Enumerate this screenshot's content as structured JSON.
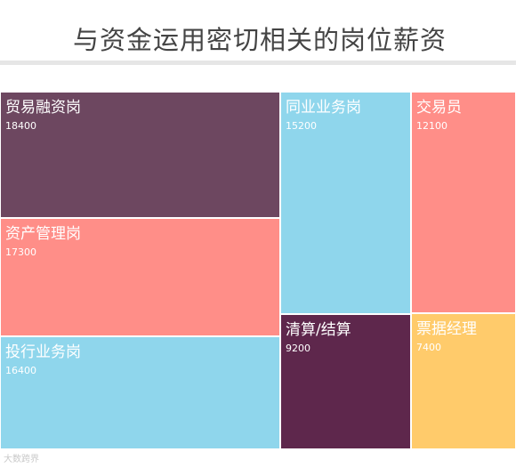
{
  "chart_data": {
    "type": "treemap",
    "title": "与资金运用密切相关的岗位薪资",
    "items": [
      {
        "label": "贸易融资岗",
        "value": 18400,
        "color": "#6d4760"
      },
      {
        "label": "资产管理岗",
        "value": 17300,
        "color": "#ff8e88"
      },
      {
        "label": "投行业务岗",
        "value": 16400,
        "color": "#8fd6ec"
      },
      {
        "label": "同业业务岗",
        "value": 15200,
        "color": "#8fd6ec"
      },
      {
        "label": "清算/结算",
        "value": 9200,
        "color": "#5e274c"
      },
      {
        "label": "交易员",
        "value": 12100,
        "color": "#ff8e88"
      },
      {
        "label": "票据经理",
        "value": 7400,
        "color": "#ffcb6b"
      }
    ]
  },
  "watermark": "大数跨界"
}
